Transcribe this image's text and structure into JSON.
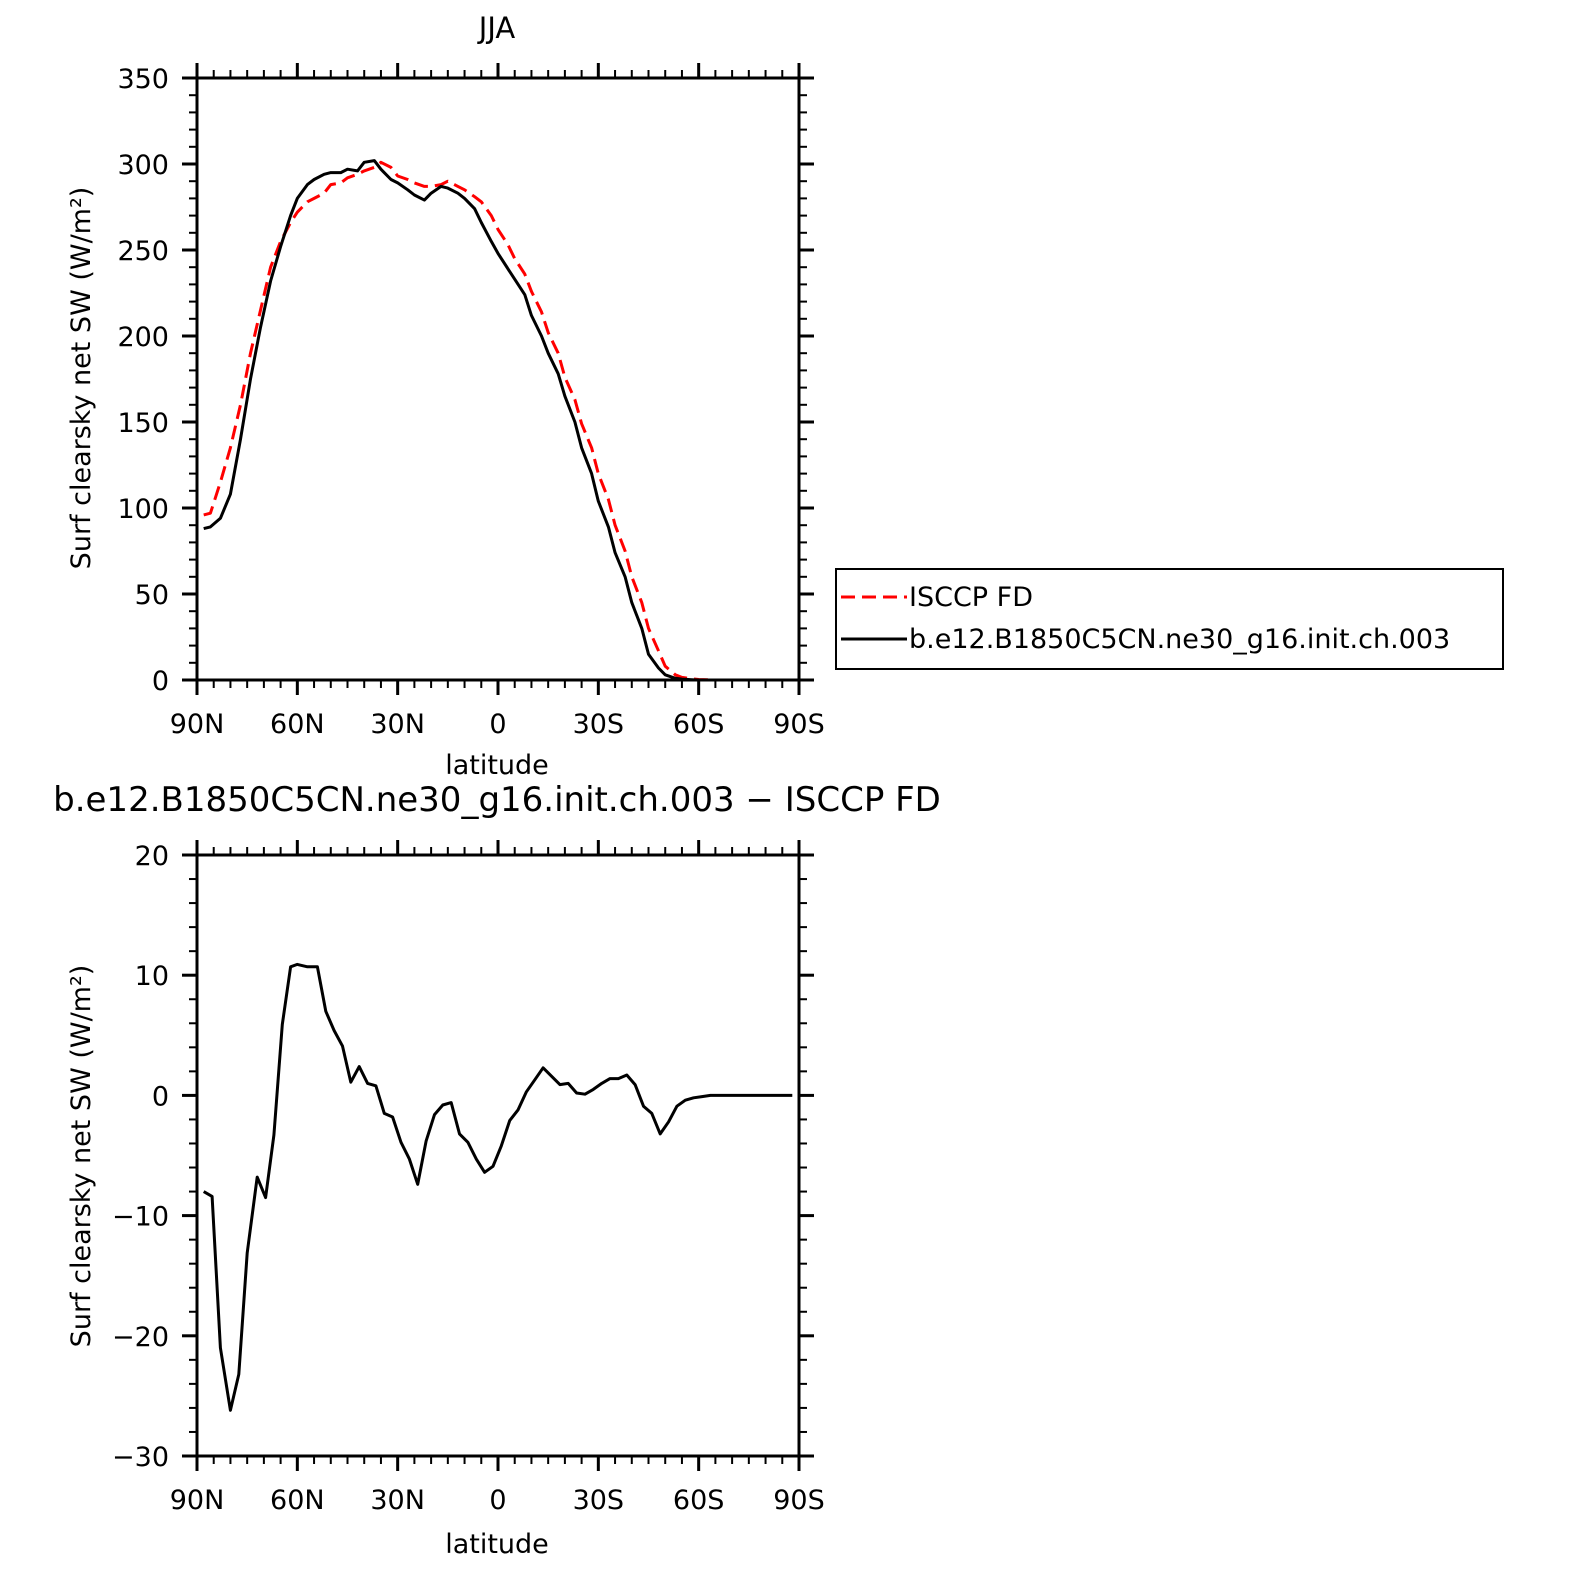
{
  "chart_data": [
    {
      "type": "line",
      "title": "JJA",
      "xlabel": "latitude",
      "ylabel": "Surf clearsky net SW (W/m²)",
      "ylim": [
        0,
        350
      ],
      "xlim": [
        90,
        -90
      ],
      "yticks": [
        0,
        50,
        100,
        150,
        200,
        250,
        300,
        350
      ],
      "xticks": [
        90,
        60,
        30,
        0,
        -30,
        -60,
        -90
      ],
      "xtick_labels": [
        "90N",
        "60N",
        "30N",
        "0",
        "30S",
        "60S",
        "90S"
      ],
      "grid": false,
      "legend_position": "right",
      "series": [
        {
          "name": "ISCCP FD",
          "color": "#ff0000",
          "dash": "dashed",
          "x": [
            88,
            86,
            83,
            80,
            77,
            74,
            71,
            68,
            65,
            62,
            60,
            57,
            55,
            52,
            50,
            47,
            45,
            42,
            40,
            37,
            35,
            32,
            30,
            27,
            25,
            22,
            20,
            17,
            15,
            12,
            10,
            7,
            5,
            2,
            0,
            -3,
            -5,
            -8,
            -10,
            -13,
            -15,
            -18,
            -20,
            -23,
            -25,
            -28,
            -30,
            -33,
            -35,
            -38,
            -40,
            -43,
            -45,
            -48,
            -50,
            -53,
            -55,
            -58,
            -60,
            -63,
            -65,
            -68,
            -70,
            -73,
            -75,
            -78,
            -80,
            -83,
            -85,
            -88
          ],
          "y": [
            96,
            97,
            115,
            135,
            160,
            190,
            215,
            240,
            255,
            266,
            272,
            278,
            280,
            283,
            288,
            289,
            292,
            294,
            296,
            298,
            301,
            298,
            293,
            291,
            289,
            287,
            287,
            288,
            290,
            287,
            285,
            281,
            278,
            270,
            262,
            253,
            245,
            236,
            226,
            214,
            202,
            190,
            176,
            163,
            149,
            135,
            120,
            105,
            90,
            75,
            60,
            45,
            30,
            17,
            8,
            3,
            1.5,
            0.7,
            0.3,
            0.1,
            0,
            0,
            0,
            0,
            0,
            0,
            0,
            0,
            0,
            0
          ]
        },
        {
          "name": "b.e12.B1850C5CN.ne30_g16.init.ch.003",
          "color": "#000000",
          "dash": "solid",
          "x": [
            88,
            86,
            83,
            80,
            77,
            74,
            71,
            68,
            65,
            62,
            60,
            57,
            55,
            52,
            50,
            47,
            45,
            42,
            40,
            37,
            35,
            32,
            30,
            27,
            25,
            22,
            20,
            17,
            15,
            12,
            10,
            7,
            5,
            2,
            0,
            -3,
            -5,
            -8,
            -10,
            -13,
            -15,
            -18,
            -20,
            -23,
            -25,
            -28,
            -30,
            -33,
            -35,
            -38,
            -40,
            -43,
            -45,
            -48,
            -50,
            -53,
            -55,
            -58,
            -60,
            -63,
            -65,
            -68,
            -70,
            -73,
            -75,
            -78,
            -80,
            -83,
            -85,
            -88
          ],
          "y": [
            88,
            89,
            94,
            108,
            140,
            175,
            205,
            232,
            252,
            270,
            280,
            288,
            291,
            294,
            295,
            295,
            297,
            296,
            301,
            302,
            297,
            291,
            289,
            285,
            282,
            279,
            283,
            287,
            286,
            283,
            280,
            274,
            266,
            255,
            248,
            239,
            233,
            224,
            212,
            200,
            190,
            178,
            165,
            150,
            135,
            120,
            104,
            89,
            74,
            60,
            45,
            30,
            15,
            7,
            3,
            1,
            0.5,
            0.2,
            0,
            0,
            0,
            0,
            0,
            0,
            0,
            0,
            0,
            0,
            0,
            0
          ]
        }
      ]
    },
    {
      "type": "line",
      "title": "b.e12.B1850C5CN.ne30_g16.init.ch.003 − ISCCP FD",
      "xlabel": "latitude",
      "ylabel": "Surf clearsky net SW (W/m²)",
      "ylim": [
        -30,
        20
      ],
      "xlim": [
        90,
        -90
      ],
      "yticks": [
        -30,
        -20,
        -10,
        0,
        10,
        20
      ],
      "ytick_labels": [
        "−30",
        "−20",
        "−10",
        "0",
        "10",
        "20"
      ],
      "xticks": [
        90,
        60,
        30,
        0,
        -30,
        -60,
        -90
      ],
      "xtick_labels": [
        "90N",
        "60N",
        "30N",
        "0",
        "30S",
        "60S",
        "90S"
      ],
      "grid": false,
      "series": [
        {
          "color": "#000000",
          "dash": "solid",
          "x": [
            88,
            85.5,
            83,
            80,
            77.5,
            75,
            72,
            69.5,
            67,
            64.5,
            62,
            60,
            57,
            54,
            51.5,
            49,
            46.5,
            44,
            41.5,
            39,
            36.5,
            34,
            31.5,
            29,
            26.5,
            24,
            21.5,
            19,
            16.5,
            14,
            11.5,
            9,
            6.5,
            4,
            1.5,
            -1,
            -3.5,
            -6,
            -8.5,
            -11,
            -13.5,
            -16,
            -18.5,
            -21,
            -23.5,
            -26,
            -28.5,
            -31,
            -33.5,
            -36,
            -38.5,
            -41,
            -43.5,
            -46,
            -48.5,
            -51,
            -53.5,
            -56,
            -58.5,
            -61,
            -63.5,
            -66,
            -68.5,
            -71,
            -73.5,
            -76,
            -78.5,
            -81,
            -83.5,
            -86,
            -88
          ],
          "y": [
            -8,
            -8.4,
            -21,
            -26.2,
            -23.2,
            -13.1,
            -6.8,
            -8.5,
            -3.3,
            5.9,
            10.7,
            10.9,
            10.7,
            10.7,
            7,
            5.4,
            4.1,
            1.1,
            2.4,
            1.0,
            0.8,
            -1.5,
            -1.8,
            -3.9,
            -5.3,
            -7.4,
            -3.8,
            -1.6,
            -0.8,
            -0.6,
            -3.2,
            -3.9,
            -5.3,
            -6.4,
            -5.9,
            -4.2,
            -2.1,
            -1.2,
            0.3,
            1.3,
            2.3,
            1.6,
            0.9,
            1.0,
            0.2,
            0.1,
            0.5,
            1.0,
            1.4,
            1.4,
            1.7,
            0.9,
            -0.9,
            -1.5,
            -3.2,
            -2.2,
            -0.9,
            -0.4,
            -0.2,
            -0.1,
            0,
            0,
            0,
            0,
            0,
            0,
            0,
            0,
            0,
            0,
            0
          ]
        }
      ]
    }
  ]
}
